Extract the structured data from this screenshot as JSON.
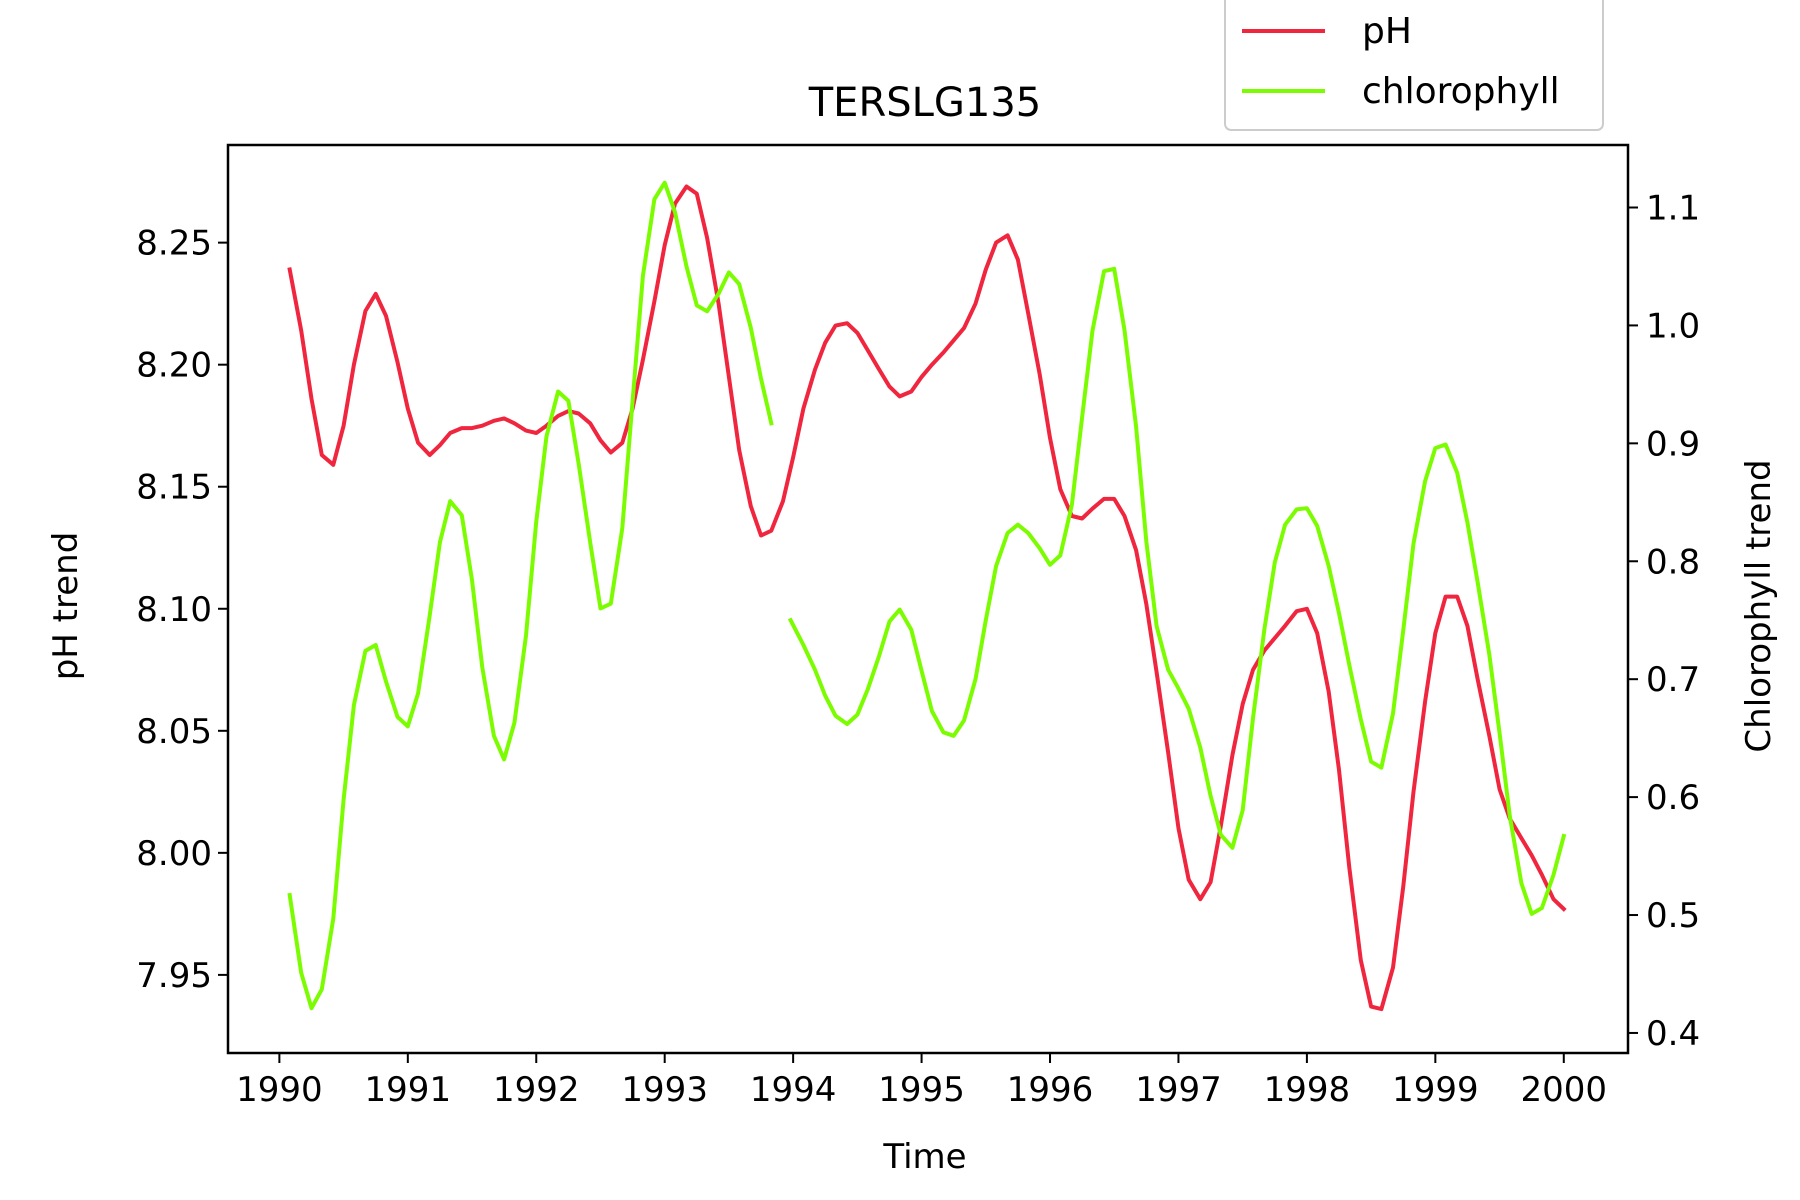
{
  "chart_data": {
    "type": "line",
    "title": "TERSLG135",
    "xlabel": "Time",
    "ylabel_left": "pH trend",
    "ylabel_right": "Chlorophyll trend",
    "xlim": [
      1989.6,
      2000.5
    ],
    "ylim_left": [
      7.918,
      8.29
    ],
    "ylim_right": [
      0.383,
      1.153
    ],
    "x_ticks": [
      1990,
      1991,
      1992,
      1993,
      1994,
      1995,
      1996,
      1997,
      1998,
      1999,
      2000
    ],
    "x_tick_labels": [
      "1990",
      "1991",
      "1992",
      "1993",
      "1994",
      "1995",
      "1996",
      "1997",
      "1998",
      "1999",
      "2000"
    ],
    "y_ticks_left": [
      7.95,
      8.0,
      8.05,
      8.1,
      8.15,
      8.2,
      8.25
    ],
    "y_tick_labels_left": [
      "7.95",
      "8.00",
      "8.05",
      "8.10",
      "8.15",
      "8.20",
      "8.25"
    ],
    "y_ticks_right": [
      0.4,
      0.5,
      0.6,
      0.7,
      0.8,
      0.9,
      1.0,
      1.1
    ],
    "y_tick_labels_right": [
      "0.4",
      "0.5",
      "0.6",
      "0.7",
      "0.8",
      "0.9",
      "1.0",
      "1.1"
    ],
    "grid": false,
    "legend_position": "top-right, above plot",
    "series": [
      {
        "name": "pH",
        "axis": "left",
        "color": "#f0263f",
        "points": [
          [
            1990.08,
            8.239
          ],
          [
            1990.17,
            8.214
          ],
          [
            1990.25,
            8.186
          ],
          [
            1990.33,
            8.163
          ],
          [
            1990.42,
            8.159
          ],
          [
            1990.5,
            8.175
          ],
          [
            1990.58,
            8.2
          ],
          [
            1990.67,
            8.222
          ],
          [
            1990.75,
            8.229
          ],
          [
            1990.83,
            8.22
          ],
          [
            1990.92,
            8.201
          ],
          [
            1991.0,
            8.182
          ],
          [
            1991.08,
            8.168
          ],
          [
            1991.17,
            8.163
          ],
          [
            1991.25,
            8.167
          ],
          [
            1991.33,
            8.172
          ],
          [
            1991.42,
            8.174
          ],
          [
            1991.5,
            8.174
          ],
          [
            1991.58,
            8.175
          ],
          [
            1991.67,
            8.177
          ],
          [
            1991.75,
            8.178
          ],
          [
            1991.83,
            8.176
          ],
          [
            1991.92,
            8.173
          ],
          [
            1992.0,
            8.172
          ],
          [
            1992.08,
            8.175
          ],
          [
            1992.17,
            8.179
          ],
          [
            1992.25,
            8.181
          ],
          [
            1992.33,
            8.18
          ],
          [
            1992.42,
            8.176
          ],
          [
            1992.5,
            8.169
          ],
          [
            1992.58,
            8.164
          ],
          [
            1992.67,
            8.168
          ],
          [
            1992.75,
            8.182
          ],
          [
            1992.83,
            8.202
          ],
          [
            1992.92,
            8.226
          ],
          [
            1993.0,
            8.249
          ],
          [
            1993.08,
            8.266
          ],
          [
            1993.17,
            8.273
          ],
          [
            1993.25,
            8.27
          ],
          [
            1993.33,
            8.252
          ],
          [
            1993.42,
            8.225
          ],
          [
            1993.5,
            8.195
          ],
          [
            1993.58,
            8.165
          ],
          [
            1993.67,
            8.142
          ],
          [
            1993.75,
            8.13
          ],
          [
            1993.83,
            8.132
          ],
          [
            1993.92,
            8.144
          ],
          [
            1994.0,
            8.162
          ],
          [
            1994.08,
            8.182
          ],
          [
            1994.17,
            8.198
          ],
          [
            1994.25,
            8.209
          ],
          [
            1994.33,
            8.216
          ],
          [
            1994.42,
            8.217
          ],
          [
            1994.5,
            8.213
          ],
          [
            1994.58,
            8.206
          ],
          [
            1994.67,
            8.198
          ],
          [
            1994.75,
            8.191
          ],
          [
            1994.83,
            8.187
          ],
          [
            1994.92,
            8.189
          ],
          [
            1995.0,
            8.195
          ],
          [
            1995.08,
            8.2
          ],
          [
            1995.17,
            8.205
          ],
          [
            1995.25,
            8.21
          ],
          [
            1995.33,
            8.215
          ],
          [
            1995.42,
            8.225
          ],
          [
            1995.5,
            8.239
          ],
          [
            1995.58,
            8.25
          ],
          [
            1995.67,
            8.253
          ],
          [
            1995.75,
            8.243
          ],
          [
            1995.83,
            8.221
          ],
          [
            1995.92,
            8.196
          ],
          [
            1996.0,
            8.17
          ],
          [
            1996.08,
            8.149
          ],
          [
            1996.17,
            8.138
          ],
          [
            1996.25,
            8.137
          ],
          [
            1996.33,
            8.141
          ],
          [
            1996.42,
            8.145
          ],
          [
            1996.5,
            8.145
          ],
          [
            1996.58,
            8.138
          ],
          [
            1996.67,
            8.124
          ],
          [
            1996.75,
            8.102
          ],
          [
            1996.83,
            8.074
          ],
          [
            1996.92,
            8.041
          ],
          [
            1997.0,
            8.01
          ],
          [
            1997.08,
            7.989
          ],
          [
            1997.17,
            7.981
          ],
          [
            1997.25,
            7.988
          ],
          [
            1997.33,
            8.011
          ],
          [
            1997.42,
            8.04
          ],
          [
            1997.5,
            8.061
          ],
          [
            1997.58,
            8.075
          ],
          [
            1997.67,
            8.083
          ],
          [
            1997.75,
            8.088
          ],
          [
            1997.83,
            8.093
          ],
          [
            1997.92,
            8.099
          ],
          [
            1998.0,
            8.1
          ],
          [
            1998.08,
            8.09
          ],
          [
            1998.17,
            8.066
          ],
          [
            1998.25,
            8.034
          ],
          [
            1998.33,
            7.994
          ],
          [
            1998.42,
            7.956
          ],
          [
            1998.5,
            7.937
          ],
          [
            1998.58,
            7.936
          ],
          [
            1998.67,
            7.953
          ],
          [
            1998.75,
            7.986
          ],
          [
            1998.83,
            8.025
          ],
          [
            1998.92,
            8.062
          ],
          [
            1999.0,
            8.09
          ],
          [
            1999.08,
            8.105
          ],
          [
            1999.17,
            8.105
          ],
          [
            1999.25,
            8.093
          ],
          [
            1999.33,
            8.071
          ],
          [
            1999.42,
            8.048
          ],
          [
            1999.5,
            8.026
          ],
          [
            1999.58,
            8.014
          ],
          [
            1999.67,
            8.006
          ],
          [
            1999.75,
            7.999
          ],
          [
            1999.83,
            7.991
          ],
          [
            1999.92,
            7.981
          ],
          [
            2000.0,
            7.977
          ]
        ]
      },
      {
        "name": "chlorophyll",
        "axis": "right",
        "color": "#7cfc00",
        "points": [
          [
            1990.08,
            0.517
          ],
          [
            1990.17,
            0.451
          ],
          [
            1990.25,
            0.421
          ],
          [
            1990.33,
            0.437
          ],
          [
            1990.42,
            0.497
          ],
          [
            1990.5,
            0.598
          ],
          [
            1990.58,
            0.678
          ],
          [
            1990.67,
            0.724
          ],
          [
            1990.75,
            0.729
          ],
          [
            1990.83,
            0.698
          ],
          [
            1990.92,
            0.668
          ],
          [
            1991.0,
            0.66
          ],
          [
            1991.08,
            0.688
          ],
          [
            1991.17,
            0.754
          ],
          [
            1991.25,
            0.816
          ],
          [
            1991.33,
            0.851
          ],
          [
            1991.42,
            0.839
          ],
          [
            1991.5,
            0.784
          ],
          [
            1991.58,
            0.71
          ],
          [
            1991.67,
            0.652
          ],
          [
            1991.75,
            0.632
          ],
          [
            1991.83,
            0.663
          ],
          [
            1991.92,
            0.737
          ],
          [
            1992.0,
            0.834
          ],
          [
            1992.08,
            0.906
          ],
          [
            1992.17,
            0.944
          ],
          [
            1992.25,
            0.936
          ],
          [
            1992.33,
            0.883
          ],
          [
            1992.42,
            0.816
          ],
          [
            1992.5,
            0.76
          ],
          [
            1992.58,
            0.764
          ],
          [
            1992.67,
            0.828
          ],
          [
            1992.75,
            0.936
          ],
          [
            1992.83,
            1.042
          ],
          [
            1992.92,
            1.107
          ],
          [
            1993.0,
            1.121
          ],
          [
            1993.08,
            1.096
          ],
          [
            1993.17,
            1.05
          ],
          [
            1993.25,
            1.017
          ],
          [
            1993.33,
            1.012
          ],
          [
            1993.42,
            1.027
          ],
          [
            1993.5,
            1.045
          ],
          [
            1993.58,
            1.035
          ],
          [
            1993.67,
            0.998
          ],
          [
            1993.75,
            0.955
          ],
          [
            1993.83,
            0.917
          ],
          [
            1993.98,
            0.75
          ],
          [
            1994.08,
            0.729
          ],
          [
            1994.17,
            0.708
          ],
          [
            1994.25,
            0.686
          ],
          [
            1994.33,
            0.669
          ],
          [
            1994.42,
            0.662
          ],
          [
            1994.5,
            0.67
          ],
          [
            1994.58,
            0.691
          ],
          [
            1994.67,
            0.72
          ],
          [
            1994.75,
            0.749
          ],
          [
            1994.83,
            0.759
          ],
          [
            1994.92,
            0.742
          ],
          [
            1995.0,
            0.707
          ],
          [
            1995.08,
            0.673
          ],
          [
            1995.17,
            0.655
          ],
          [
            1995.25,
            0.652
          ],
          [
            1995.33,
            0.665
          ],
          [
            1995.42,
            0.7
          ],
          [
            1995.5,
            0.75
          ],
          [
            1995.58,
            0.796
          ],
          [
            1995.67,
            0.824
          ],
          [
            1995.75,
            0.831
          ],
          [
            1995.83,
            0.824
          ],
          [
            1995.92,
            0.811
          ],
          [
            1996.0,
            0.797
          ],
          [
            1996.08,
            0.805
          ],
          [
            1996.17,
            0.848
          ],
          [
            1996.25,
            0.922
          ],
          [
            1996.33,
            0.995
          ],
          [
            1996.42,
            1.046
          ],
          [
            1996.5,
            1.048
          ],
          [
            1996.58,
            0.996
          ],
          [
            1996.67,
            0.914
          ],
          [
            1996.75,
            0.817
          ],
          [
            1996.83,
            0.745
          ],
          [
            1996.92,
            0.708
          ],
          [
            1997.0,
            0.692
          ],
          [
            1997.08,
            0.675
          ],
          [
            1997.17,
            0.642
          ],
          [
            1997.25,
            0.601
          ],
          [
            1997.33,
            0.568
          ],
          [
            1997.42,
            0.557
          ],
          [
            1997.5,
            0.589
          ],
          [
            1997.58,
            0.667
          ],
          [
            1997.67,
            0.743
          ],
          [
            1997.75,
            0.799
          ],
          [
            1997.83,
            0.831
          ],
          [
            1997.92,
            0.844
          ],
          [
            1998.0,
            0.845
          ],
          [
            1998.08,
            0.83
          ],
          [
            1998.17,
            0.796
          ],
          [
            1998.25,
            0.756
          ],
          [
            1998.33,
            0.712
          ],
          [
            1998.42,
            0.666
          ],
          [
            1998.5,
            0.63
          ],
          [
            1998.58,
            0.625
          ],
          [
            1998.67,
            0.671
          ],
          [
            1998.75,
            0.741
          ],
          [
            1998.83,
            0.815
          ],
          [
            1998.92,
            0.868
          ],
          [
            1999.0,
            0.896
          ],
          [
            1999.08,
            0.899
          ],
          [
            1999.17,
            0.875
          ],
          [
            1999.25,
            0.833
          ],
          [
            1999.33,
            0.782
          ],
          [
            1999.42,
            0.721
          ],
          [
            1999.5,
            0.654
          ],
          [
            1999.58,
            0.584
          ],
          [
            1999.67,
            0.527
          ],
          [
            1999.75,
            0.501
          ],
          [
            1999.83,
            0.506
          ],
          [
            1999.92,
            0.534
          ],
          [
            2000.0,
            0.567
          ]
        ]
      }
    ]
  }
}
